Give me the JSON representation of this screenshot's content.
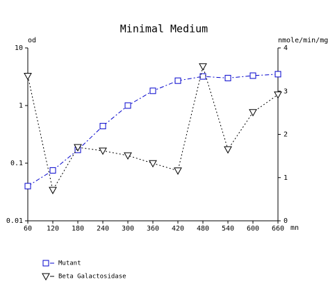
{
  "chart_data": {
    "type": "line",
    "title": "Minimal Medium",
    "ylabel": "od",
    "y2label": "nmole/min/mg",
    "xlabel": "mn",
    "x": [
      60,
      120,
      180,
      240,
      300,
      360,
      420,
      480,
      540,
      600,
      660
    ],
    "xlim": [
      60,
      660
    ],
    "xticks": [
      60,
      120,
      180,
      240,
      300,
      360,
      420,
      480,
      540,
      600,
      660
    ],
    "ylim": [
      0.01,
      10
    ],
    "yticks": [
      0.01,
      0.1,
      1,
      10
    ],
    "yscale": "log",
    "y2lim": [
      0,
      4
    ],
    "y2ticks": [
      0,
      1,
      2,
      3,
      4
    ],
    "legend": "bottom-left",
    "series": [
      {
        "name": "Mutant",
        "color": "#0000cc",
        "marker": "square",
        "dash": "6 3 2 3",
        "values": [
          0.04,
          0.075,
          0.17,
          0.44,
          1.0,
          1.8,
          2.7,
          3.2,
          3.0,
          3.3,
          3.5
        ]
      },
      {
        "name": "Beta Galactosidase",
        "color": "#000000",
        "marker": "triangle",
        "dash": "2 3",
        "axis": "y2",
        "values": [
          3.35,
          0.71,
          1.7,
          1.62,
          1.51,
          1.33,
          1.16,
          3.57,
          1.65,
          2.51,
          2.92
        ]
      }
    ]
  }
}
